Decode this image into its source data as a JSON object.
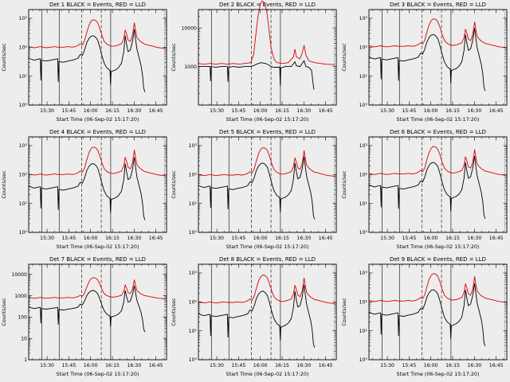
{
  "page": {
    "bg": "#ededed",
    "fg": "#000000",
    "red": "#dd0000"
  },
  "chart_data": {
    "type": "line",
    "layout": "3x3-grid",
    "shared": {
      "xlabel": "Start Time (06-Sep-02 15:17:20)",
      "ylabel": "Counts/sec",
      "x_range": [
        0,
        95
      ],
      "x_unit": "minutes-after-15:17:20",
      "x_major_ticks": [
        {
          "m": 12.67,
          "label": "15:30"
        },
        {
          "m": 27.67,
          "label": "15:45"
        },
        {
          "m": 42.67,
          "label": "16:00"
        },
        {
          "m": 57.67,
          "label": "16:15"
        },
        {
          "m": 72.67,
          "label": "16:30"
        },
        {
          "m": 87.67,
          "label": "16:45"
        }
      ],
      "x_minor_offset": 2.67,
      "x_minor_step": 5,
      "vlines": [
        {
          "m": 9.0,
          "style": "solid"
        },
        {
          "m": 21.0,
          "style": "solid"
        },
        {
          "m": 36.5,
          "style": "dashed"
        },
        {
          "m": 50.0,
          "style": "dashed"
        },
        {
          "m": 56.5,
          "style": "solid"
        },
        {
          "m": 93.5,
          "style": "dotted"
        }
      ],
      "legend": {
        "black": "Events",
        "red": "LLD"
      },
      "shapes": {
        "black": {
          "x": [
            0,
            2,
            4,
            6,
            8,
            8.4,
            8.8,
            12,
            15,
            18,
            20,
            20.4,
            20.8,
            24,
            27,
            30,
            32,
            34,
            35.5,
            37,
            38.5,
            40,
            41.5,
            43,
            44.5,
            46,
            47.5,
            49,
            50.5,
            52,
            54,
            56,
            56.4,
            56.8,
            58,
            60,
            62,
            64,
            65.5,
            66.5,
            67.5,
            68.5,
            70,
            71.5,
            72.8,
            73.6,
            74.5,
            76,
            77.5,
            78.5,
            79.2,
            80
          ],
          "ylog": [
            1.62,
            1.58,
            1.55,
            1.58,
            1.6,
            0.85,
            1.55,
            1.52,
            1.55,
            1.58,
            1.6,
            0.8,
            1.5,
            1.48,
            1.52,
            1.55,
            1.58,
            1.62,
            1.75,
            1.72,
            1.9,
            2.15,
            2.3,
            2.38,
            2.4,
            2.35,
            2.25,
            2.0,
            1.7,
            1.45,
            1.28,
            1.2,
            0.7,
            1.15,
            1.18,
            1.22,
            1.3,
            1.45,
            1.85,
            2.4,
            2.1,
            1.85,
            1.9,
            2.2,
            2.62,
            2.3,
            1.95,
            1.65,
            1.35,
            1.0,
            0.6,
            0.45
          ]
        },
        "red": {
          "x": [
            0,
            2,
            4,
            6,
            8,
            12,
            15,
            18,
            20,
            24,
            27,
            30,
            32,
            34,
            35.5,
            37,
            38.5,
            40,
            41.5,
            43,
            44.5,
            46,
            47.5,
            49,
            50.5,
            52,
            54,
            56,
            58,
            60,
            62,
            64,
            65.5,
            66.5,
            67.5,
            68.5,
            70,
            71.5,
            72.8,
            73.6,
            74.5,
            76,
            77.5,
            78.5,
            80,
            82,
            84,
            86,
            88,
            90,
            92,
            94
          ],
          "ylog": [
            2.02,
            2.0,
            1.98,
            2.0,
            2.02,
            1.98,
            2.0,
            2.02,
            2.0,
            2.0,
            2.02,
            2.0,
            2.02,
            2.06,
            2.12,
            2.08,
            2.22,
            2.5,
            2.75,
            2.9,
            2.95,
            2.93,
            2.85,
            2.65,
            2.4,
            2.2,
            2.1,
            2.05,
            2.03,
            2.05,
            2.08,
            2.12,
            2.3,
            2.6,
            2.45,
            2.25,
            2.2,
            2.4,
            2.85,
            2.6,
            2.35,
            2.25,
            2.18,
            2.15,
            2.1,
            2.08,
            2.05,
            2.03,
            2.0,
            1.98,
            1.97,
            1.95
          ]
        }
      },
      "panels": [
        {
          "det": 1,
          "title": "Det 1  BLACK = Events, RED = LLD",
          "ylim": [
            1,
            2000
          ],
          "yticks": [
            {
              "v": 1,
              "label": "10⁰"
            },
            {
              "v": 10,
              "label": "10¹"
            },
            {
              "v": 100,
              "label": "10²"
            },
            {
              "v": 1000,
              "label": "10³"
            }
          ],
          "offsets": {
            "black": 0,
            "red": 0
          }
        },
        {
          "det": 2,
          "title": "Det 2  BLACK = Events, RED = LLD",
          "ylim": [
            100,
            30000
          ],
          "yticks": [
            {
              "v": 1000,
              "label": "1000"
            },
            {
              "v": 10000,
              "label": "10000"
            }
          ],
          "offsets": {
            "black": 0,
            "red": 0
          },
          "series_override": {
            "black": {
              "x": [
                0,
                4,
                8,
                8.4,
                8.8,
                12,
                16,
                20,
                20.4,
                20.8,
                24,
                28,
                32,
                36,
                38,
                40,
                43,
                46,
                48,
                50,
                52,
                56,
                56.4,
                56.8,
                60,
                64,
                66.5,
                67.5,
                70,
                72.8,
                74,
                76,
                78,
                79,
                79.6
              ],
              "ylog": [
                3.0,
                3.0,
                3.0,
                2.62,
                3.0,
                2.98,
                3.0,
                3.0,
                2.6,
                2.98,
                3.0,
                2.98,
                3.0,
                3.0,
                3.02,
                3.06,
                3.1,
                3.08,
                3.05,
                3.0,
                2.98,
                2.98,
                2.5,
                2.96,
                3.0,
                3.0,
                3.12,
                3.02,
                3.0,
                3.15,
                3.0,
                2.98,
                2.9,
                2.55,
                2.4
              ]
            },
            "red": {
              "x": [
                0,
                4,
                8,
                12,
                16,
                20,
                24,
                28,
                32,
                36,
                38,
                39.5,
                41,
                42.5,
                44,
                45.5,
                47,
                48.5,
                50,
                52,
                54,
                58,
                62,
                65.5,
                66.5,
                67.5,
                70,
                71.5,
                72.8,
                74,
                76,
                80,
                84,
                88,
                92,
                94
              ],
              "ylog": [
                3.08,
                3.06,
                3.08,
                3.06,
                3.08,
                3.06,
                3.08,
                3.06,
                3.08,
                3.1,
                3.3,
                3.8,
                4.3,
                4.6,
                4.7,
                4.65,
                4.45,
                4.0,
                3.5,
                3.2,
                3.1,
                3.08,
                3.1,
                3.25,
                3.45,
                3.25,
                3.2,
                3.35,
                3.55,
                3.3,
                3.15,
                3.1,
                3.08,
                3.06,
                3.05,
                3.05
              ]
            }
          }
        },
        {
          "det": 3,
          "title": "Det 3  BLACK = Events, RED = LLD",
          "ylim": [
            1,
            2000
          ],
          "yticks": [
            {
              "v": 1,
              "label": "10⁰"
            },
            {
              "v": 10,
              "label": "10¹"
            },
            {
              "v": 100,
              "label": "10²"
            },
            {
              "v": 1000,
              "label": "10³"
            }
          ],
          "offsets": {
            "black": 0.04,
            "red": 0.03
          }
        },
        {
          "det": 4,
          "title": "Det 4  BLACK = Events, RED = LLD",
          "ylim": [
            1,
            2000
          ],
          "yticks": [
            {
              "v": 1,
              "label": "10⁰"
            },
            {
              "v": 10,
              "label": "10¹"
            },
            {
              "v": 100,
              "label": "10²"
            },
            {
              "v": 1000,
              "label": "10³"
            }
          ],
          "offsets": {
            "black": -0.02,
            "red": 0
          }
        },
        {
          "det": 5,
          "title": "Det 5  BLACK = Events, RED = LLD",
          "ylim": [
            1,
            2000
          ],
          "yticks": [
            {
              "v": 1,
              "label": "10⁰"
            },
            {
              "v": 10,
              "label": "10¹"
            },
            {
              "v": 100,
              "label": "10²"
            },
            {
              "v": 1000,
              "label": "10³"
            }
          ],
          "offsets": {
            "black": 0,
            "red": -0.02
          }
        },
        {
          "det": 6,
          "title": "Det 6  BLACK = Events, RED = LLD",
          "ylim": [
            1,
            2000
          ],
          "yticks": [
            {
              "v": 1,
              "label": "10⁰"
            },
            {
              "v": 10,
              "label": "10¹"
            },
            {
              "v": 100,
              "label": "10²"
            },
            {
              "v": 1000,
              "label": "10³"
            }
          ],
          "offsets": {
            "black": 0.02,
            "red": 0.02
          }
        },
        {
          "det": 7,
          "title": "Det 7  BLACK = Events, RED = LLD",
          "ylim": [
            1,
            30000
          ],
          "yticks": [
            {
              "v": 1,
              "label": "1"
            },
            {
              "v": 10,
              "label": "10"
            },
            {
              "v": 100,
              "label": "100"
            },
            {
              "v": 1000,
              "label": "1000"
            },
            {
              "v": 10000,
              "label": "10000"
            }
          ],
          "offsets": {
            "black": 0.85,
            "red": 0.9
          }
        },
        {
          "det": 8,
          "title": "Det 8  BLACK = Events, RED = LLD",
          "ylim": [
            1,
            2000
          ],
          "yticks": [
            {
              "v": 1,
              "label": "10⁰"
            },
            {
              "v": 10,
              "label": "10¹"
            },
            {
              "v": 100,
              "label": "10²"
            },
            {
              "v": 1000,
              "label": "10³"
            }
          ],
          "offsets": {
            "black": -0.03,
            "red": -0.02
          }
        },
        {
          "det": 9,
          "title": "Det 9  BLACK = Events, RED = LLD",
          "ylim": [
            1,
            2000
          ],
          "yticks": [
            {
              "v": 1,
              "label": "10⁰"
            },
            {
              "v": 10,
              "label": "10¹"
            },
            {
              "v": 100,
              "label": "10²"
            },
            {
              "v": 1000,
              "label": "10³"
            }
          ],
          "offsets": {
            "black": 0.02,
            "red": 0.03
          }
        }
      ]
    }
  }
}
